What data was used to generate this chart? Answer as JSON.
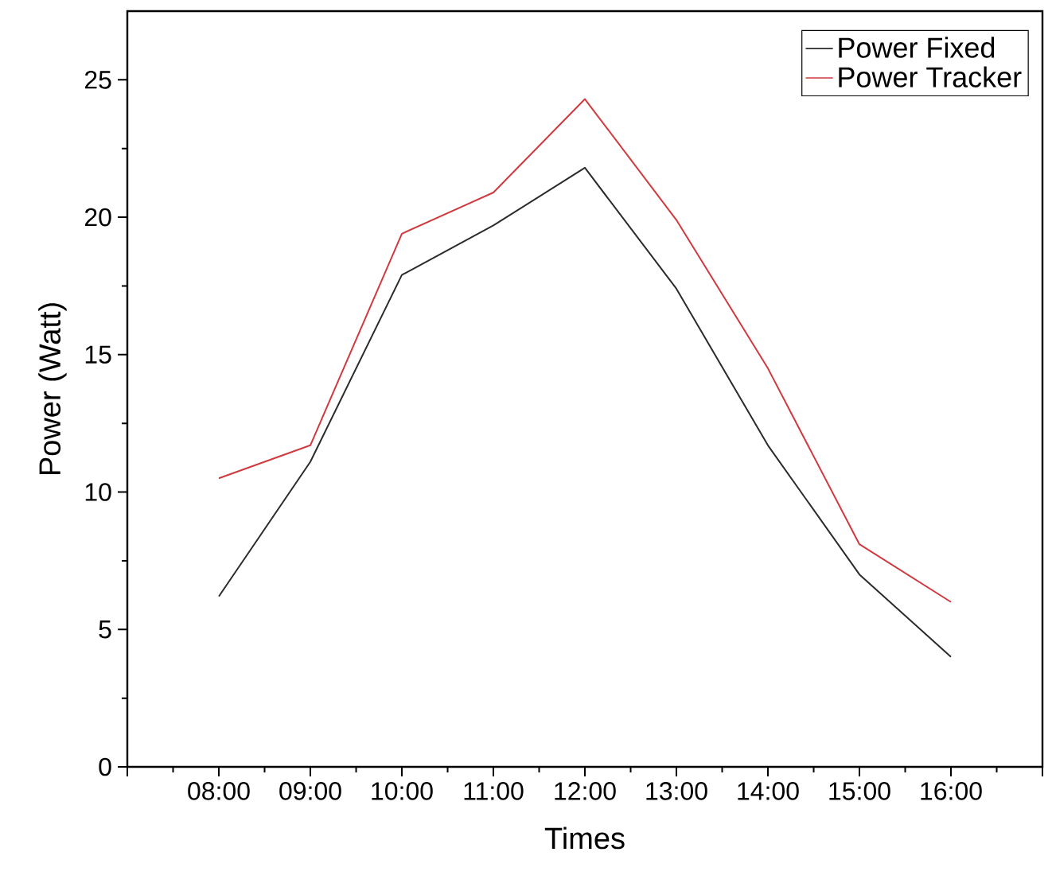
{
  "chart_data": {
    "type": "line",
    "xlabel": "Times",
    "ylabel": "Power (Watt)",
    "x": [
      8,
      9,
      10,
      11,
      12,
      13,
      14,
      15,
      16
    ],
    "series": [
      {
        "name": "Power Fixed",
        "color": "#2b2b2b",
        "values": [
          6.2,
          11.1,
          17.9,
          19.7,
          21.8,
          17.4,
          11.7,
          7.0,
          4.0
        ]
      },
      {
        "name": "Power Tracker",
        "color": "#d03a3f",
        "values": [
          10.5,
          11.7,
          19.4,
          20.9,
          24.3,
          19.9,
          14.5,
          8.1,
          6.0
        ]
      }
    ],
    "xlim": [
      7,
      17
    ],
    "ylim": [
      0,
      27.5
    ],
    "xticks": [
      {
        "value": 7,
        "label": null
      },
      {
        "value": 8,
        "label": "08:00"
      },
      {
        "value": 9,
        "label": "09:00"
      },
      {
        "value": 10,
        "label": "10:00"
      },
      {
        "value": 11,
        "label": "11:00"
      },
      {
        "value": 12,
        "label": "12:00"
      },
      {
        "value": 13,
        "label": "13:00"
      },
      {
        "value": 14,
        "label": "14:00"
      },
      {
        "value": 15,
        "label": "15:00"
      },
      {
        "value": 16,
        "label": "16:00"
      },
      {
        "value": 17,
        "label": null
      }
    ],
    "yticks": [
      0,
      5,
      10,
      15,
      20,
      25
    ],
    "grid": false,
    "legend": "top right",
    "marker": "none",
    "line_style": "solid"
  }
}
